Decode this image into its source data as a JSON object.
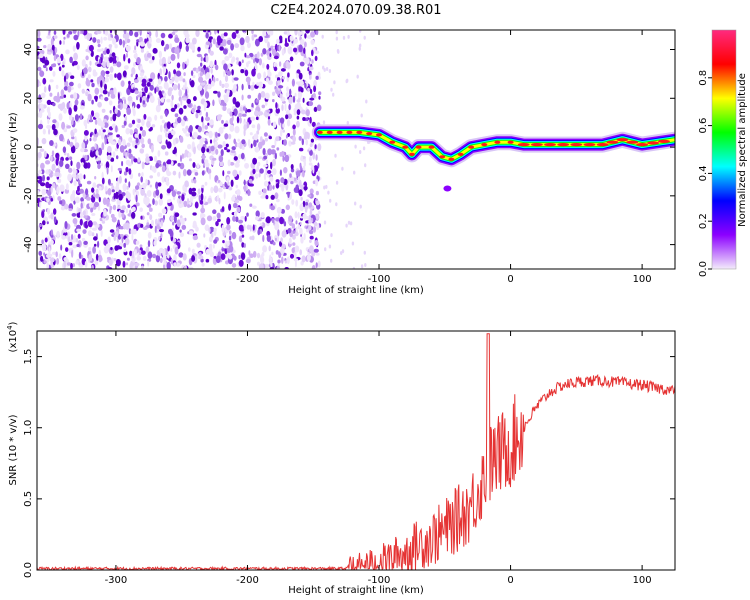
{
  "title": "C2E4.2024.070.09.38.R01",
  "colors": {
    "snr_line": "#e53333",
    "scatter_purple": "#6a0ad6",
    "axis": "#000000"
  },
  "chart_data": [
    {
      "type": "heatmap",
      "xlabel": "Height of straight line (km)",
      "ylabel": "Frequency (Hz)",
      "xlim": [
        -360,
        125
      ],
      "ylim": [
        -50,
        48
      ],
      "xticks": [
        "-300",
        "-200",
        "-100",
        "0",
        "100"
      ],
      "xtick_values": [
        -300,
        -200,
        -100,
        0,
        100
      ],
      "yticks": [
        "-40",
        "-20",
        "0",
        "20",
        "40"
      ],
      "ytick_values": [
        -40,
        -20,
        0,
        20,
        40
      ],
      "colorbar": {
        "label": "Normalized spectral amplitude",
        "range": [
          0,
          1
        ],
        "ticks": [
          "0.0",
          "0.2",
          "0.4",
          "0.6",
          "0.8"
        ],
        "tick_values": [
          0.0,
          0.2,
          0.4,
          0.6,
          0.8
        ],
        "colormap": [
          "#f4ecfb",
          "#8c00ff",
          "#0000ff",
          "#00ffff",
          "#00ff00",
          "#ffff00",
          "#ff0000",
          "#ff2a7f"
        ]
      },
      "noise_region_x": [
        -360,
        -145
      ],
      "signal_trace": {
        "x": [
          -145,
          -130,
          -115,
          -100,
          -90,
          -80,
          -75,
          -70,
          -60,
          -52,
          -45,
          -38,
          -30,
          -20,
          -10,
          0,
          10,
          30,
          50,
          70,
          85,
          100,
          125
        ],
        "y": [
          6,
          6,
          6,
          5,
          2,
          0,
          -3,
          0,
          0,
          -4,
          -5,
          -3,
          0,
          1,
          2,
          2,
          1,
          1,
          1,
          1,
          3,
          1,
          3
        ]
      }
    },
    {
      "type": "line",
      "xlabel": "Height of straight line (km)",
      "ylabel": "SNR (10 * v/v)",
      "multiplier_label": "(x10",
      "multiplier_exp": "4",
      "xlim": [
        -360,
        125
      ],
      "ylim": [
        0,
        1.68
      ],
      "xticks": [
        "-300",
        "-200",
        "-100",
        "0",
        "100"
      ],
      "xtick_values": [
        -300,
        -200,
        -100,
        0,
        100
      ],
      "yticks": [
        "0.0",
        "0.5",
        "1.0",
        "1.5"
      ],
      "ytick_values": [
        0.0,
        0.5,
        1.0,
        1.5
      ],
      "series": [
        {
          "x": [
            -360,
            -300,
            -200,
            -140,
            -125,
            -110,
            -100,
            -90,
            -80,
            -70,
            -60,
            -50,
            -40,
            -30,
            -25,
            -20,
            -15,
            -10,
            0,
            10,
            20,
            30,
            40,
            50,
            60,
            70,
            80,
            90,
            100,
            110,
            125
          ],
          "y": [
            0.01,
            0.01,
            0.01,
            0.01,
            0.01,
            0.03,
            0.05,
            0.08,
            0.12,
            0.18,
            0.22,
            0.28,
            0.36,
            0.45,
            0.55,
            0.65,
            0.75,
            0.8,
            0.88,
            1.0,
            1.15,
            1.25,
            1.3,
            1.32,
            1.33,
            1.33,
            1.32,
            1.31,
            1.3,
            1.28,
            1.26
          ]
        }
      ]
    }
  ]
}
